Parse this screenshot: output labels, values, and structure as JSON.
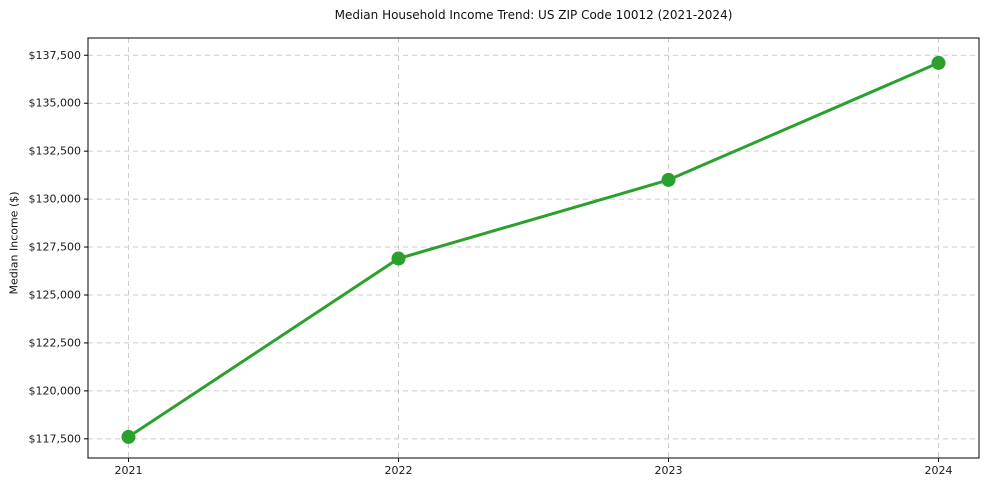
{
  "chart_data": {
    "type": "line",
    "title": "Median Household Income Trend: US ZIP Code 10012 (2021-2024)",
    "xlabel": "",
    "ylabel": "Median Income ($)",
    "x": [
      2021,
      2022,
      2023,
      2024
    ],
    "values": [
      117600,
      126900,
      131000,
      137100
    ],
    "xticks": [
      {
        "value": 2021,
        "label": "2021"
      },
      {
        "value": 2022,
        "label": "2022"
      },
      {
        "value": 2023,
        "label": "2023"
      },
      {
        "value": 2024,
        "label": "2024"
      }
    ],
    "yticks": [
      {
        "value": 117500,
        "label": "$117,500"
      },
      {
        "value": 120000,
        "label": "$120,000"
      },
      {
        "value": 122500,
        "label": "$122,500"
      },
      {
        "value": 125000,
        "label": "$125,000"
      },
      {
        "value": 127500,
        "label": "$127,500"
      },
      {
        "value": 130000,
        "label": "$130,000"
      },
      {
        "value": 132500,
        "label": "$132,500"
      },
      {
        "value": 135000,
        "label": "$135,000"
      },
      {
        "value": 137500,
        "label": "$137,500"
      }
    ],
    "xlim": [
      2020.85,
      2024.15
    ],
    "ylim": [
      116500,
      138400
    ],
    "grid": "dashed-both-directions",
    "legend": "none",
    "colors": {
      "line": "#2ca02c",
      "marker": "#2ca02c",
      "grid": "#cccccc",
      "spine": "#000000",
      "text": "#1a1a1a",
      "background": "#ffffff"
    }
  }
}
